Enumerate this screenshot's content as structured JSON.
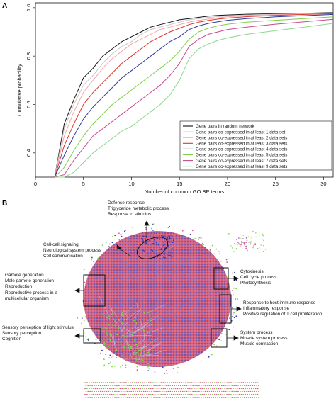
{
  "figure": {
    "panel_a_label": "A",
    "panel_b_label": "B"
  },
  "chart_data": [
    {
      "type": "line",
      "title": "",
      "xlabel": "Number of common GO BP terms",
      "ylabel": "Cumulative probability",
      "xlim": [
        0,
        31
      ],
      "ylim": [
        0.3,
        1.02
      ],
      "xticks": [
        0,
        5,
        10,
        15,
        20,
        25,
        30
      ],
      "yticks": [
        0.4,
        0.6,
        0.8,
        1.0
      ],
      "ytick_labels": [
        "0.4",
        "0.6",
        "0.8",
        "1.0"
      ],
      "grid": false,
      "legend_position": "bottom-right",
      "series": [
        {
          "name": "Gene pairs in random network",
          "color": "#111111",
          "x": [
            2,
            3,
            4,
            5,
            6,
            7,
            8,
            9,
            10,
            11,
            12,
            13,
            14,
            15,
            16,
            17,
            18,
            19,
            20,
            22,
            25,
            28,
            31
          ],
          "y": [
            0.3,
            0.52,
            0.62,
            0.71,
            0.75,
            0.8,
            0.83,
            0.86,
            0.88,
            0.9,
            0.92,
            0.93,
            0.94,
            0.95,
            0.955,
            0.96,
            0.965,
            0.968,
            0.97,
            0.973,
            0.975,
            0.977,
            0.98
          ]
        },
        {
          "name": "Gene pairs co-expressed in at least 1 data set",
          "color": "#c8c8c8",
          "x": [
            2,
            3,
            4,
            5,
            6,
            7,
            8,
            9,
            10,
            11,
            12,
            13,
            14,
            15,
            16,
            17,
            18,
            19,
            20,
            22,
            25,
            28,
            31
          ],
          "y": [
            0.29,
            0.5,
            0.6,
            0.68,
            0.72,
            0.77,
            0.81,
            0.84,
            0.86,
            0.89,
            0.91,
            0.92,
            0.93,
            0.94,
            0.95,
            0.955,
            0.96,
            0.963,
            0.966,
            0.97,
            0.973,
            0.975,
            0.978
          ]
        },
        {
          "name": "Gene pairs co-expressed in at least 2 data sets",
          "color": "#f4a6a6",
          "x": [
            2,
            3,
            4,
            5,
            6,
            7,
            8,
            9,
            10,
            11,
            12,
            13,
            14,
            15,
            16,
            17,
            18,
            19,
            20,
            22,
            25,
            28,
            31
          ],
          "y": [
            0.28,
            0.47,
            0.57,
            0.65,
            0.7,
            0.75,
            0.79,
            0.82,
            0.85,
            0.87,
            0.89,
            0.91,
            0.92,
            0.93,
            0.94,
            0.948,
            0.953,
            0.958,
            0.962,
            0.967,
            0.971,
            0.974,
            0.977
          ]
        },
        {
          "name": "Gene pairs co-expressed in at least 3 data sets",
          "color": "#d9352b",
          "x": [
            2,
            3,
            4,
            5,
            6,
            7,
            8,
            9,
            10,
            11,
            12,
            13,
            14,
            15,
            16,
            17,
            18,
            19,
            20,
            22,
            25,
            28,
            31
          ],
          "y": [
            0.27,
            0.43,
            0.52,
            0.6,
            0.65,
            0.69,
            0.73,
            0.77,
            0.8,
            0.83,
            0.86,
            0.88,
            0.9,
            0.915,
            0.93,
            0.94,
            0.947,
            0.953,
            0.957,
            0.963,
            0.968,
            0.972,
            0.975
          ]
        },
        {
          "name": "Gene pairs co-expressed in at least 4 data sets",
          "color": "#2d3a9e",
          "x": [
            2,
            3,
            4,
            5,
            6,
            7,
            8,
            9,
            10,
            11,
            12,
            13,
            14,
            15,
            16,
            17,
            18,
            19,
            20,
            22,
            25,
            28,
            31
          ],
          "y": [
            0.26,
            0.39,
            0.47,
            0.54,
            0.59,
            0.63,
            0.67,
            0.71,
            0.74,
            0.77,
            0.8,
            0.83,
            0.86,
            0.88,
            0.91,
            0.925,
            0.935,
            0.942,
            0.948,
            0.955,
            0.962,
            0.967,
            0.972
          ]
        },
        {
          "name": "Gene pairs co-expressed in at least 5 data sets",
          "color": "#7fcf4a",
          "x": [
            2,
            3,
            4,
            5,
            6,
            7,
            8,
            9,
            10,
            11,
            12,
            13,
            14,
            15,
            16,
            17,
            18,
            19,
            20,
            22,
            25,
            28,
            31
          ],
          "y": [
            0.25,
            0.34,
            0.41,
            0.47,
            0.52,
            0.56,
            0.6,
            0.63,
            0.66,
            0.69,
            0.72,
            0.75,
            0.78,
            0.82,
            0.87,
            0.9,
            0.915,
            0.925,
            0.932,
            0.94,
            0.948,
            0.955,
            0.962
          ]
        },
        {
          "name": "Gene pairs co-expressed in at least 7 data sets",
          "color": "#c94a8c",
          "x": [
            2,
            3,
            4,
            5,
            6,
            7,
            8,
            9,
            10,
            11,
            12,
            13,
            14,
            15,
            16,
            17,
            18,
            19,
            20,
            22,
            25,
            28,
            31
          ],
          "y": [
            0.24,
            0.31,
            0.37,
            0.42,
            0.47,
            0.5,
            0.53,
            0.56,
            0.59,
            0.62,
            0.65,
            0.68,
            0.72,
            0.77,
            0.84,
            0.87,
            0.89,
            0.9,
            0.91,
            0.92,
            0.932,
            0.942,
            0.952
          ]
        },
        {
          "name": "Gene pairs co-expressed in at least 9 data sets",
          "color": "#8fd68f",
          "x": [
            2,
            3,
            4,
            5,
            6,
            7,
            8,
            9,
            10,
            11,
            12,
            13,
            14,
            15,
            16,
            17,
            18,
            19,
            20,
            22,
            25,
            28,
            31
          ],
          "y": [
            0.22,
            0.27,
            0.32,
            0.36,
            0.4,
            0.43,
            0.46,
            0.49,
            0.51,
            0.54,
            0.57,
            0.6,
            0.64,
            0.7,
            0.79,
            0.83,
            0.85,
            0.865,
            0.875,
            0.89,
            0.905,
            0.92,
            0.935
          ]
        }
      ]
    }
  ],
  "network": {
    "annotations": {
      "top": [
        "Defense response",
        "Triglyceride metabolic process",
        "Response to stimulus"
      ],
      "upper_left": [
        "Cell-cell signaling",
        "Neurological system process",
        "Cell communication"
      ],
      "left": [
        "Gamete generation",
        "Male gamete generation",
        "Reproduction",
        "Reproductive process in a",
        "multicellular organism"
      ],
      "lower_left": [
        "Sensory perception of light stimulus",
        "Sensory perception",
        "Cognition"
      ],
      "upper_right": [
        "Cytokinesis",
        "Cell cycle process",
        "Photosynthesis"
      ],
      "right": [
        "Response to host immune response",
        "Inflammatory response",
        "Positive regulation of T cell proliferation"
      ],
      "lower_right": [
        "System process",
        "Muscle system process",
        "Muscle contraction"
      ]
    },
    "colors": {
      "blue_node": "#3a3ab4",
      "pink_node": "#e0608a",
      "green_node": "#7fd14a",
      "edge": "#7c7cd8"
    }
  }
}
